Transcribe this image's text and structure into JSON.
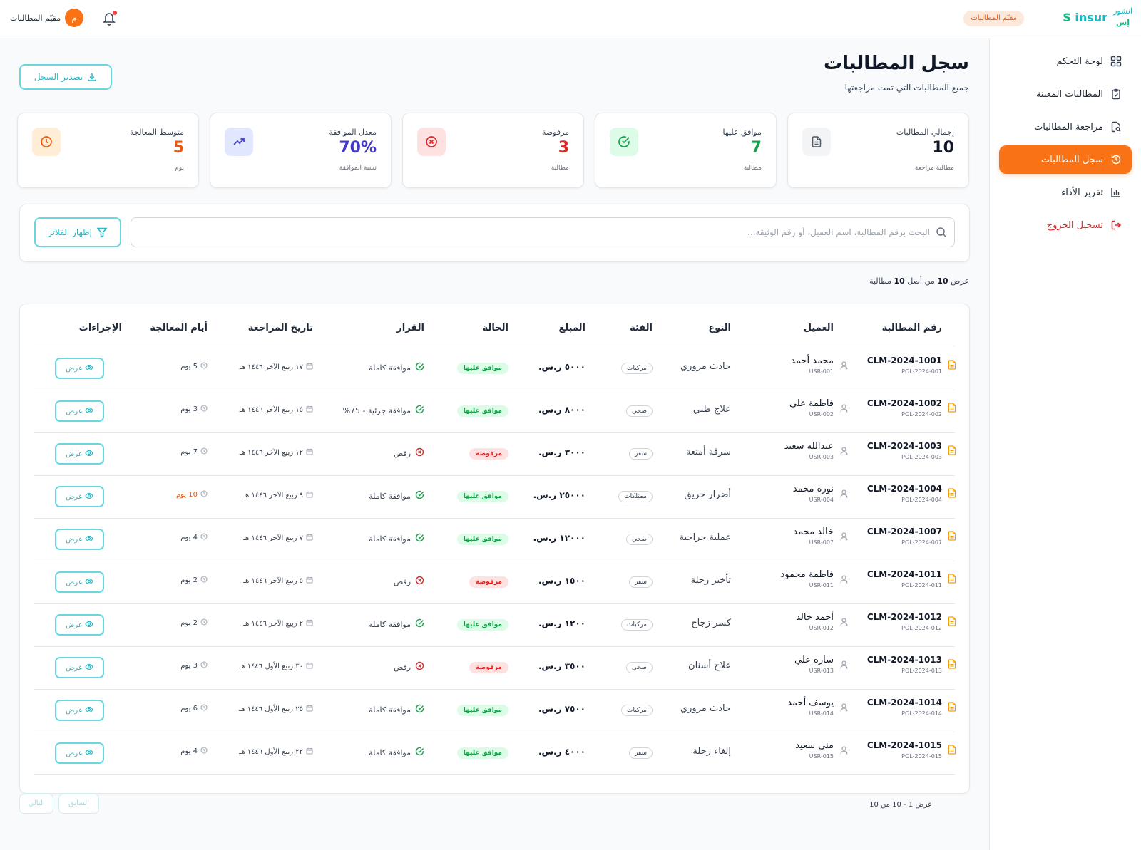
{
  "header": {
    "logo_en": "insur",
    "logo_s": "S",
    "logo_ar_line1": "انشور",
    "logo_ar_line2": "إس",
    "role_badge": "مقيّم المطالبات",
    "user_name": "مقيّم المطالبات",
    "avatar_letter": "م"
  },
  "sidebar": {
    "items": [
      {
        "label": "لوحة التحكم",
        "icon": "grid-icon"
      },
      {
        "label": "المطالبات المعينة",
        "icon": "clipboard-check-icon"
      },
      {
        "label": "مراجعة المطالبات",
        "icon": "file-search-icon"
      },
      {
        "label": "سجل المطالبات",
        "icon": "history-icon",
        "active": true
      },
      {
        "label": "تقرير الأداء",
        "icon": "bar-chart-icon"
      },
      {
        "label": "تسجيل الخروج",
        "icon": "logout-icon"
      }
    ]
  },
  "page": {
    "title": "سجل المطالبات",
    "subtitle": "جميع المطالبات التي تمت مراجعتها",
    "export_label": "تصدير السجل"
  },
  "stats": [
    {
      "label": "إجمالي المطالبات",
      "value": "10",
      "sub": "مطالبة مراجعة",
      "color": "#111827",
      "icon": "document-icon",
      "icon_bg": "#f3f4f6",
      "icon_color": "#4b5563"
    },
    {
      "label": "موافق عليها",
      "value": "7",
      "sub": "مطالبة",
      "color": "#16a34a",
      "icon": "check-circle-icon",
      "icon_bg": "#dcfce7",
      "icon_color": "#16a34a"
    },
    {
      "label": "مرفوضة",
      "value": "3",
      "sub": "مطالبة",
      "color": "#dc2626",
      "icon": "x-circle-icon",
      "icon_bg": "#fee2e2",
      "icon_color": "#dc2626"
    },
    {
      "label": "معدل الموافقة",
      "value": "70%",
      "sub": "نسبة الموافقة",
      "color": "#4338ca",
      "icon": "trending-up-icon",
      "icon_bg": "#e0e7ff",
      "icon_color": "#4338ca"
    },
    {
      "label": "متوسط المعالجة",
      "value": "5",
      "sub": "يوم",
      "color": "#ea580c",
      "icon": "clock-icon",
      "icon_bg": "#ffedd5",
      "icon_color": "#ea580c"
    }
  ],
  "search": {
    "placeholder": "البحث برقم المطالبة، اسم العميل، أو رقم الوثيقة...",
    "value": "",
    "filter_label": "إظهار الفلاتر"
  },
  "results": {
    "prefix": "عرض",
    "shown": "10",
    "middle": "من أصل",
    "total": "10",
    "suffix": "مطالبة"
  },
  "table": {
    "headers": [
      "رقم المطالبة",
      "العميل",
      "النوع",
      "الفئة",
      "المبلغ",
      "الحالة",
      "القرار",
      "تاريخ المراجعة",
      "أيام المعالجة",
      "الإجراءات"
    ],
    "view_label": "عرض",
    "rows": [
      {
        "id": "CLM-2024-1001",
        "policy": "POL-2024-001",
        "client": "محمد أحمد",
        "user": "USR-001",
        "type": "حادث مروري",
        "category": "مركبات",
        "amount": "٥٠٠٠ ر.س.",
        "status": "موافق عليها",
        "status_kind": "ok",
        "decision": "موافقة كاملة",
        "decision_kind": "ok",
        "date": "١٧ ربيع الآخر ١٤٤٦ هـ",
        "days": "5 يوم",
        "days_warn": false
      },
      {
        "id": "CLM-2024-1002",
        "policy": "POL-2024-002",
        "client": "فاطمة علي",
        "user": "USR-002",
        "type": "علاج طبي",
        "category": "صحي",
        "amount": "٨٠٠٠ ر.س.",
        "status": "موافق عليها",
        "status_kind": "ok",
        "decision": "موافقة جزئية - 75%",
        "decision_kind": "ok",
        "date": "١٥ ربيع الآخر ١٤٤٦ هـ",
        "days": "3 يوم",
        "days_warn": false
      },
      {
        "id": "CLM-2024-1003",
        "policy": "POL-2024-003",
        "client": "عبدالله سعيد",
        "user": "USR-003",
        "type": "سرقة أمتعة",
        "category": "سفر",
        "amount": "٣٠٠٠ ر.س.",
        "status": "مرفوضة",
        "status_kind": "no",
        "decision": "رفض",
        "decision_kind": "no",
        "date": "١٢ ربيع الآخر ١٤٤٦ هـ",
        "days": "7 يوم",
        "days_warn": false
      },
      {
        "id": "CLM-2024-1004",
        "policy": "POL-2024-004",
        "client": "نورة محمد",
        "user": "USR-004",
        "type": "أضرار حريق",
        "category": "ممتلكات",
        "amount": "٢٥٠٠٠ ر.س.",
        "status": "موافق عليها",
        "status_kind": "ok",
        "decision": "موافقة كاملة",
        "decision_kind": "ok",
        "date": "٩ ربيع الآخر ١٤٤٦ هـ",
        "days": "10 يوم",
        "days_warn": true
      },
      {
        "id": "CLM-2024-1007",
        "policy": "POL-2024-007",
        "client": "خالد محمد",
        "user": "USR-007",
        "type": "عملية جراحية",
        "category": "صحي",
        "amount": "١٢٠٠٠ ر.س.",
        "status": "موافق عليها",
        "status_kind": "ok",
        "decision": "موافقة كاملة",
        "decision_kind": "ok",
        "date": "٧ ربيع الآخر ١٤٤٦ هـ",
        "days": "4 يوم",
        "days_warn": false
      },
      {
        "id": "CLM-2024-1011",
        "policy": "POL-2024-011",
        "client": "فاطمة محمود",
        "user": "USR-011",
        "type": "تأخير رحلة",
        "category": "سفر",
        "amount": "١٥٠٠ ر.س.",
        "status": "مرفوضة",
        "status_kind": "no",
        "decision": "رفض",
        "decision_kind": "no",
        "date": "٥ ربيع الآخر ١٤٤٦ هـ",
        "days": "2 يوم",
        "days_warn": false
      },
      {
        "id": "CLM-2024-1012",
        "policy": "POL-2024-012",
        "client": "أحمد خالد",
        "user": "USR-012",
        "type": "كسر زجاج",
        "category": "مركبات",
        "amount": "١٢٠٠ ر.س.",
        "status": "موافق عليها",
        "status_kind": "ok",
        "decision": "موافقة كاملة",
        "decision_kind": "ok",
        "date": "٢ ربيع الآخر ١٤٤٦ هـ",
        "days": "2 يوم",
        "days_warn": false
      },
      {
        "id": "CLM-2024-1013",
        "policy": "POL-2024-013",
        "client": "سارة علي",
        "user": "USR-013",
        "type": "علاج أسنان",
        "category": "صحي",
        "amount": "٣٥٠٠ ر.س.",
        "status": "مرفوضة",
        "status_kind": "no",
        "decision": "رفض",
        "decision_kind": "no",
        "date": "٣٠ ربيع الأول ١٤٤٦ هـ",
        "days": "3 يوم",
        "days_warn": false
      },
      {
        "id": "CLM-2024-1014",
        "policy": "POL-2024-014",
        "client": "يوسف أحمد",
        "user": "USR-014",
        "type": "حادث مروري",
        "category": "مركبات",
        "amount": "٧٥٠٠ ر.س.",
        "status": "موافق عليها",
        "status_kind": "ok",
        "decision": "موافقة كاملة",
        "decision_kind": "ok",
        "date": "٢٥ ربيع الأول ١٤٤٦ هـ",
        "days": "6 يوم",
        "days_warn": false
      },
      {
        "id": "CLM-2024-1015",
        "policy": "POL-2024-015",
        "client": "منى سعيد",
        "user": "USR-015",
        "type": "إلغاء رحلة",
        "category": "سفر",
        "amount": "٤٠٠٠ ر.س.",
        "status": "موافق عليها",
        "status_kind": "ok",
        "decision": "موافقة كاملة",
        "decision_kind": "ok",
        "date": "٢٢ ربيع الأول ١٤٤٦ هـ",
        "days": "4 يوم",
        "days_warn": false
      }
    ]
  },
  "pagination": {
    "summary": "عرض 1 - 10 من 10",
    "prev_label": "السابق",
    "next_label": "التالي"
  },
  "colors": {
    "accent": "#f97316",
    "teal": "#22b8c4",
    "approved": "#16a34a",
    "rejected": "#dc2626"
  }
}
